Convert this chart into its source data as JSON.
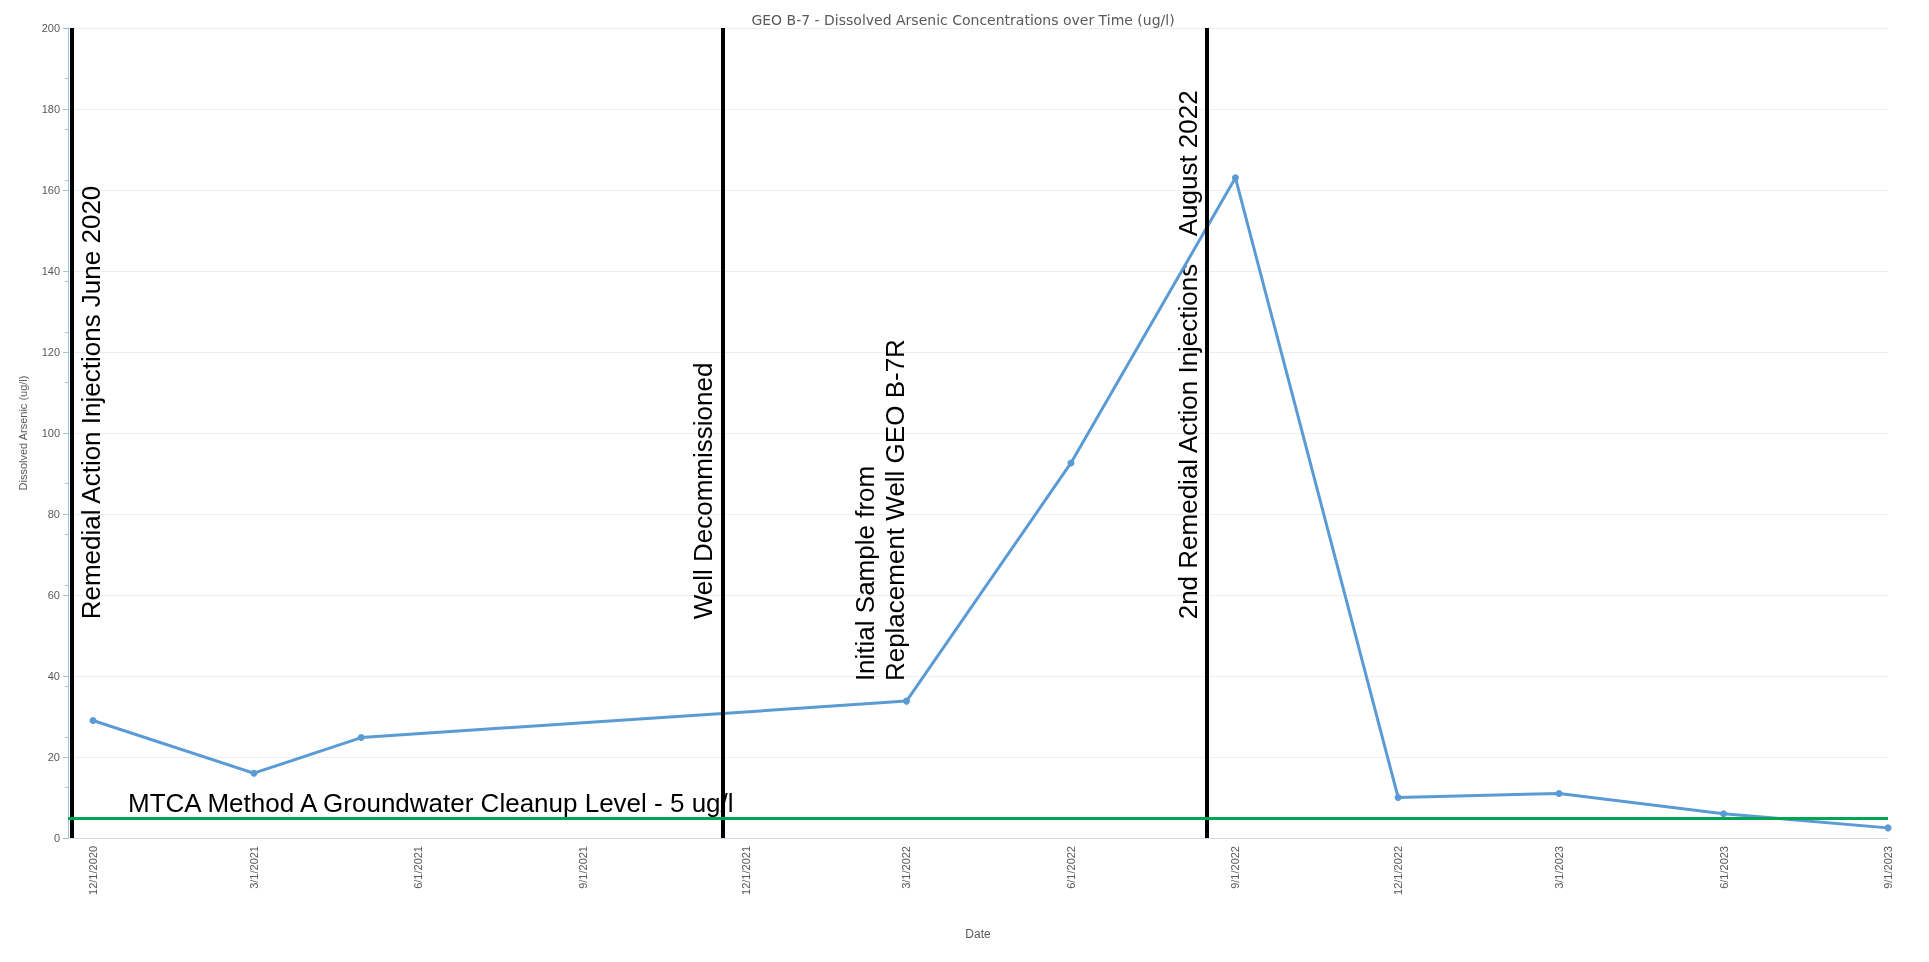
{
  "chart_data": {
    "type": "line",
    "title": "GEO B-7 - Dissolved Arsenic Concentrations over Time (ug/l)",
    "xlabel": "Date",
    "ylabel": "Dissolved Arsenic (ug/l)",
    "x": [
      "2020-12-01",
      "2021-03-01",
      "2021-04-30",
      "2022-03-01",
      "2022-06-01",
      "2022-09-01",
      "2022-12-01",
      "2023-03-01",
      "2023-06-01",
      "2023-09-01"
    ],
    "series": [
      {
        "color": "#5b9bd5",
        "values": [
          29,
          16,
          24.8,
          33.8,
          92.6,
          163,
          10,
          11,
          6,
          2.5
        ]
      }
    ],
    "xlim": [
      "2020-11-17",
      "2023-09-01"
    ],
    "xticks": [
      {
        "value": "2020-12-01",
        "label": "12/1/2020"
      },
      {
        "value": "2021-03-01",
        "label": "3/1/2021"
      },
      {
        "value": "2021-06-01",
        "label": "6/1/2021"
      },
      {
        "value": "2021-09-01",
        "label": "9/1/2021"
      },
      {
        "value": "2021-12-01",
        "label": "12/1/2021"
      },
      {
        "value": "2022-03-01",
        "label": "3/1/2022"
      },
      {
        "value": "2022-06-01",
        "label": "6/1/2022"
      },
      {
        "value": "2022-09-01",
        "label": "9/1/2022"
      },
      {
        "value": "2022-12-01",
        "label": "12/1/2022"
      },
      {
        "value": "2023-03-01",
        "label": "3/1/2023"
      },
      {
        "value": "2023-06-01",
        "label": "6/1/2023"
      },
      {
        "value": "2023-09-01",
        "label": "9/1/2023"
      }
    ],
    "ylim": [
      0,
      200
    ],
    "yticks": [
      0,
      20,
      40,
      60,
      80,
      100,
      120,
      140,
      160,
      180,
      200
    ],
    "grid": "y",
    "marker": "circle",
    "line_style": "solid",
    "ref_lines": [
      {
        "axis": "x",
        "value": "2020-11-19",
        "label": "Remedial Action Injections June 2020",
        "color": "#000000"
      },
      {
        "axis": "x",
        "value": "2021-11-18",
        "label": "Well Decommissioned",
        "color": "#000000"
      },
      {
        "axis": "x",
        "value": "2022-08-16",
        "label": "2nd Remedial Action Injections    August 2022",
        "color": "#000000"
      },
      {
        "axis": "y",
        "value": 5,
        "label": "MTCA Method A Groundwater Cleanup Level - 5 ug/l",
        "color": "#00a550"
      }
    ],
    "annotations": [
      {
        "text": "Initial Sample from\nReplacement Well GEO B-7R",
        "x": "2022-03-01",
        "y": 33.8
      }
    ]
  }
}
